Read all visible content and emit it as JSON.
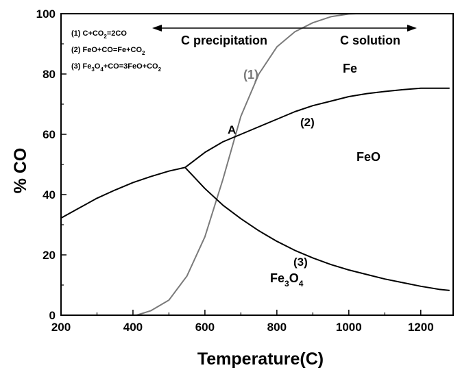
{
  "chart_data": {
    "type": "line",
    "title": "",
    "xlabel": "Temperature(C)",
    "ylabel": "% CO",
    "xlim": [
      200,
      1290
    ],
    "ylim": [
      0,
      100
    ],
    "xticks": [
      200,
      400,
      600,
      800,
      1000,
      1200
    ],
    "yticks": [
      0,
      20,
      40,
      60,
      80,
      100
    ],
    "grid": false,
    "legend": [
      {
        "main": "(1) C+CO",
        "sub": "2",
        "rest": "=2CO"
      },
      {
        "main": "(2) FeO+CO=Fe+CO",
        "sub": "2",
        "rest": ""
      },
      {
        "pre": "(3) Fe",
        "s1": "3",
        "mid": "O",
        "s2": "4",
        "rest": "+CO=3FeO+CO",
        "s3": "2"
      }
    ],
    "series": [
      {
        "name": "(1)",
        "color": "#7a7a7a",
        "x": [
          410,
          450,
          500,
          550,
          600,
          650,
          700,
          750,
          800,
          850,
          900,
          950,
          1000,
          1020
        ],
        "y": [
          0,
          1.5,
          5,
          13,
          26,
          45,
          66,
          80,
          89,
          94,
          97,
          99,
          99.9,
          100
        ]
      },
      {
        "name": "(2)",
        "color": "#000000",
        "x": [
          545,
          600,
          650,
          700,
          750,
          800,
          850,
          900,
          950,
          1000,
          1050,
          1100,
          1150,
          1200,
          1280
        ],
        "y": [
          49,
          54,
          57.5,
          60,
          62.5,
          65,
          67.5,
          69.5,
          71,
          72.5,
          73.5,
          74.2,
          74.8,
          75.3,
          75.3
        ]
      },
      {
        "name": "(3)",
        "color": "#000000",
        "x": [
          545,
          600,
          650,
          700,
          750,
          800,
          850,
          900,
          950,
          1000,
          1050,
          1100,
          1150,
          1200,
          1250,
          1280
        ],
        "y": [
          49,
          42,
          36.5,
          32,
          28,
          24.5,
          21.5,
          19,
          16.8,
          15,
          13.5,
          12,
          10.8,
          9.6,
          8.6,
          8.2
        ]
      },
      {
        "name": "",
        "color": "#000000",
        "x": [
          200,
          250,
          300,
          350,
          400,
          450,
          500,
          545
        ],
        "y": [
          32.2,
          35.5,
          38.8,
          41.5,
          44,
          46,
          47.8,
          49
        ]
      }
    ],
    "annotations": {
      "c_precip": "C precipitation",
      "c_solution": "C solution",
      "fe": "Fe",
      "label1": "(1)",
      "point_a": "A",
      "label2": "(2)",
      "feo": "FeO",
      "label3": "(3)",
      "fe3o4": {
        "main": "Fe",
        "s1": "3",
        "mid": "O",
        "s2": "4"
      }
    }
  }
}
